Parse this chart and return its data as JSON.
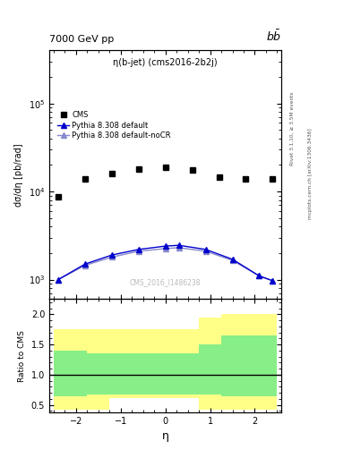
{
  "title_left": "7000 GeV pp",
  "title_right": "b$\\bar{b}$",
  "plot_title": "η(b-jet) (cms2016-2b2j)",
  "cms_watermark": "CMS_2016_I1486238",
  "right_label_top": "Rivet 3.1.10, ≥ 3.5M events",
  "right_label_bottom": "mcplots.cern.ch [arXiv:1306.3436]",
  "xlabel": "η",
  "ylabel_main": "dσ/dη [pb/rad]",
  "ylabel_ratio": "Ratio to CMS",
  "xlim": [
    -2.6,
    2.6
  ],
  "ylim_main": [
    600,
    400000
  ],
  "ylim_ratio": [
    0.38,
    2.25
  ],
  "ratio_yticks": [
    0.5,
    1.0,
    1.5,
    2.0
  ],
  "cms_x": [
    -2.4,
    -1.8,
    -1.2,
    -0.6,
    0.0,
    0.6,
    1.2,
    1.8,
    2.4
  ],
  "cms_y": [
    8700,
    14000,
    16000,
    18000,
    19000,
    17500,
    14500,
    14000,
    14000
  ],
  "pythia_x": [
    -2.4,
    -1.8,
    -1.2,
    -0.6,
    0.0,
    0.3,
    0.9,
    1.5,
    2.1,
    2.4
  ],
  "pythia_default_y": [
    1000,
    1500,
    1900,
    2200,
    2400,
    2450,
    2200,
    1700,
    1100,
    970
  ],
  "pythia_nocr_y": [
    1000,
    1450,
    1800,
    2100,
    2250,
    2300,
    2100,
    1650,
    1100,
    970
  ],
  "ratio_edges": [
    -2.5,
    -1.75,
    -1.25,
    -0.5,
    0.75,
    1.25,
    2.5
  ],
  "ratio_green_low": [
    0.65,
    0.68,
    0.68,
    0.68,
    0.68,
    0.65
  ],
  "ratio_green_high": [
    1.4,
    1.35,
    1.35,
    1.35,
    1.5,
    1.65
  ],
  "ratio_yellow_low": [
    0.42,
    0.42,
    0.62,
    0.62,
    0.42,
    0.42
  ],
  "ratio_yellow_high": [
    1.75,
    1.75,
    1.75,
    1.75,
    1.95,
    2.0
  ],
  "color_cms": "#000000",
  "color_pythia_default": "#0000cc",
  "color_pythia_nocr": "#8888cc",
  "color_green": "#88ee88",
  "color_yellow": "#ffff88",
  "bg_color": "#ffffff"
}
